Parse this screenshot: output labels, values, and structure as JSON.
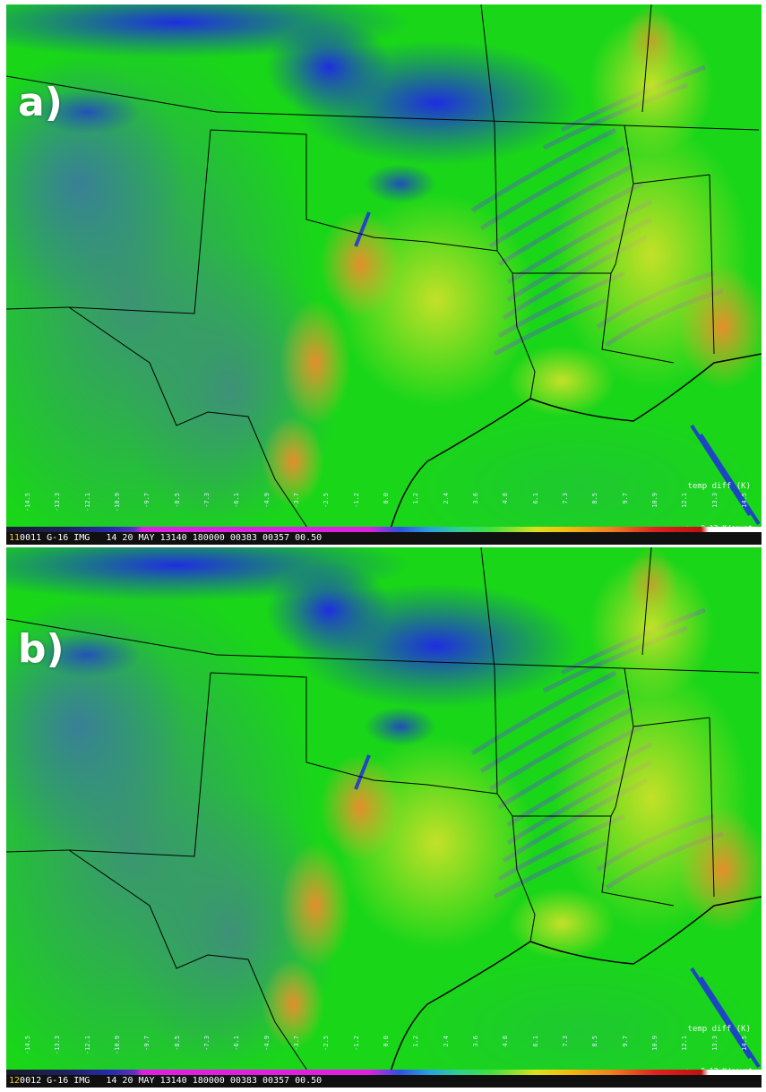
{
  "panels": [
    {
      "label": "a)",
      "frame_number": "11",
      "status_text": "0011 G-16 IMG   14 20 MAY 13140 180000 00383 00357 00.50",
      "legend_title": "temp diff (K)",
      "legend_scale": "<-- 0.12 K/count",
      "colorbar_ticks": [
        "-14.5",
        "-13.3",
        "-12.1",
        "-10.9",
        "-9.7",
        "-8.5",
        "-7.3",
        "-6.1",
        "-4.9",
        "-3.7",
        "-2.5",
        "-1.2",
        "0.0",
        "1.2",
        "2.4",
        "3.6",
        "4.8",
        "6.1",
        "7.3",
        "8.5",
        "9.7",
        "10.9",
        "12.1",
        "13.3",
        "14.5"
      ]
    },
    {
      "label": "b)",
      "frame_number": "12",
      "status_text": "0012 G-16 IMG   14 20 MAY 13140 180000 00383 00357 00.50",
      "legend_title": "temp diff (K)",
      "legend_scale": "<-- 0.12 K/count",
      "colorbar_ticks": [
        "-14.5",
        "-13.3",
        "-12.1",
        "-10.9",
        "-9.7",
        "-8.5",
        "-7.3",
        "-6.1",
        "-4.9",
        "-3.7",
        "-2.5",
        "-1.2",
        "0.0",
        "1.2",
        "2.4",
        "3.6",
        "4.8",
        "6.1",
        "7.3",
        "8.5",
        "9.7",
        "10.9",
        "12.1",
        "13.3",
        "14.5"
      ]
    }
  ],
  "colors": {
    "background_green": "#19d619",
    "cloud_blue": "#1e2ee0",
    "dry_slate": "#3e8f7a",
    "warm_yellow": "#d8e22a",
    "warm_orange": "#f0a030",
    "hot_red": "#e85a20",
    "border_line": "#000000"
  }
}
